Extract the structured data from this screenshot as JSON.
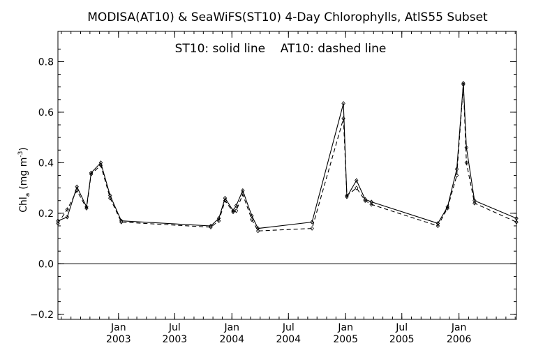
{
  "chart_data": {
    "type": "line",
    "title": "MODISA(AT10) & SeaWiFS(ST10) 4-Day Chlorophylls, AtlS55 Subset",
    "annotation": "ST10: solid line    AT10: dashed line",
    "ylabel": "Chl",
    "ylabel_sub": "a",
    "ylabel_units": "(mg m",
    "ylabel_sup": "-3",
    "ylabel_close": ")",
    "ylim": [
      -0.22,
      0.92
    ],
    "xlim": [
      "2002-06-20",
      "2006-07-05"
    ],
    "yticks": [
      {
        "value": -0.2,
        "label": "−0.2"
      },
      {
        "value": 0.0,
        "label": "0.0"
      },
      {
        "value": 0.2,
        "label": "0.2"
      },
      {
        "value": 0.4,
        "label": "0.4"
      },
      {
        "value": 0.6,
        "label": "0.6"
      },
      {
        "value": 0.8,
        "label": "0.8"
      }
    ],
    "xticks": [
      {
        "date": "2003-01-01",
        "month": "Jan",
        "year": "2003"
      },
      {
        "date": "2003-07-01",
        "month": "Jul",
        "year": "2003"
      },
      {
        "date": "2004-01-01",
        "month": "Jan",
        "year": "2004"
      },
      {
        "date": "2004-07-01",
        "month": "Jul",
        "year": "2004"
      },
      {
        "date": "2005-01-01",
        "month": "Jan",
        "year": "2005"
      },
      {
        "date": "2005-07-01",
        "month": "Jul",
        "year": "2005"
      },
      {
        "date": "2006-01-01",
        "month": "Jan",
        "year": "2006"
      }
    ],
    "zero_line": 0.0,
    "series": [
      {
        "name": "ST10",
        "style": "solid",
        "color": "#000000",
        "points": [
          [
            "2002-06-20",
            0.17
          ],
          [
            "2002-07-20",
            0.185
          ],
          [
            "2002-08-20",
            0.305
          ],
          [
            "2002-09-20",
            0.225
          ],
          [
            "2002-10-05",
            0.36
          ],
          [
            "2002-11-05",
            0.4
          ],
          [
            "2002-12-05",
            0.27
          ],
          [
            "2003-01-10",
            0.17
          ],
          [
            "2003-10-25",
            0.15
          ],
          [
            "2003-11-20",
            0.18
          ],
          [
            "2003-12-10",
            0.26
          ],
          [
            "2004-01-05",
            0.21
          ],
          [
            "2004-01-15",
            0.23
          ],
          [
            "2004-02-05",
            0.29
          ],
          [
            "2004-03-05",
            0.19
          ],
          [
            "2004-03-25",
            0.14
          ],
          [
            "2004-09-15",
            0.165
          ],
          [
            "2004-12-25",
            0.635
          ],
          [
            "2005-01-05",
            0.265
          ],
          [
            "2005-02-05",
            0.33
          ],
          [
            "2005-03-05",
            0.255
          ],
          [
            "2005-03-25",
            0.245
          ],
          [
            "2005-10-25",
            0.16
          ],
          [
            "2005-11-25",
            0.225
          ],
          [
            "2005-12-25",
            0.375
          ],
          [
            "2006-01-15",
            0.715
          ],
          [
            "2006-01-25",
            0.46
          ],
          [
            "2006-02-20",
            0.25
          ],
          [
            "2006-07-05",
            0.18
          ]
        ]
      },
      {
        "name": "AT10",
        "style": "dashed",
        "color": "#000000",
        "points": [
          [
            "2002-06-20",
            0.16
          ],
          [
            "2002-07-20",
            0.215
          ],
          [
            "2002-08-20",
            0.29
          ],
          [
            "2002-09-20",
            0.22
          ],
          [
            "2002-10-05",
            0.355
          ],
          [
            "2002-11-05",
            0.39
          ],
          [
            "2002-12-05",
            0.26
          ],
          [
            "2003-01-10",
            0.165
          ],
          [
            "2003-10-25",
            0.145
          ],
          [
            "2003-11-20",
            0.17
          ],
          [
            "2003-12-10",
            0.25
          ],
          [
            "2004-01-05",
            0.205
          ],
          [
            "2004-01-15",
            0.21
          ],
          [
            "2004-02-05",
            0.275
          ],
          [
            "2004-03-05",
            0.175
          ],
          [
            "2004-03-25",
            0.13
          ],
          [
            "2004-09-15",
            0.14
          ],
          [
            "2004-12-25",
            0.575
          ],
          [
            "2005-01-05",
            0.27
          ],
          [
            "2005-02-05",
            0.3
          ],
          [
            "2005-03-05",
            0.25
          ],
          [
            "2005-03-25",
            0.235
          ],
          [
            "2005-10-25",
            0.15
          ],
          [
            "2005-11-25",
            0.22
          ],
          [
            "2005-12-25",
            0.35
          ],
          [
            "2006-01-15",
            0.71
          ],
          [
            "2006-01-25",
            0.4
          ],
          [
            "2006-02-20",
            0.24
          ],
          [
            "2006-07-05",
            0.165
          ]
        ]
      }
    ]
  }
}
